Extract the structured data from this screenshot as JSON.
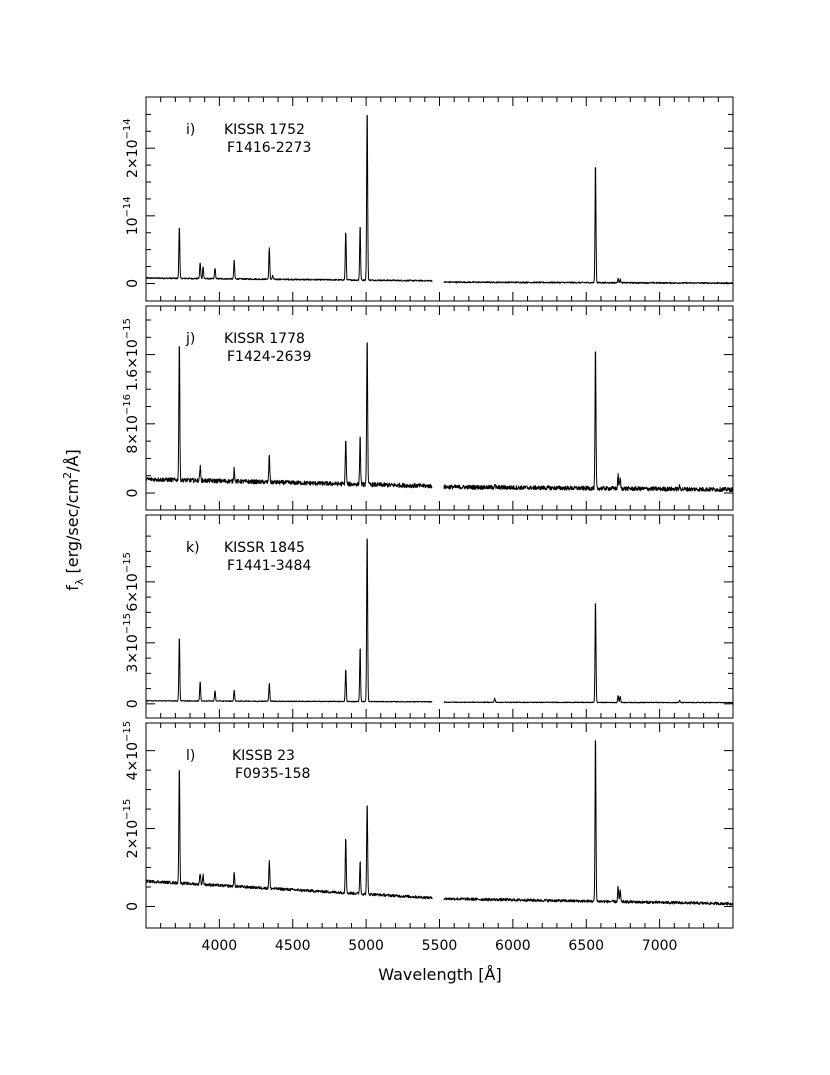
{
  "chart_data": [
    {
      "type": "line",
      "panel": "i)",
      "name": "KISSR 1752",
      "id": "F1416-2273",
      "exp": "-14",
      "xlim": [
        3500,
        7500
      ],
      "ylim": [
        -0.2,
        2.55
      ],
      "yticks": [
        {
          "v": 0,
          "label": "0"
        },
        {
          "v": 1,
          "label": "10",
          "exp": "−14"
        },
        {
          "v": 2,
          "label": "2×10",
          "exp": "−14"
        }
      ],
      "continuum": [
        [
          3500,
          0.08
        ],
        [
          5450,
          0.04
        ]
      ],
      "continuum2": [
        [
          5530,
          0.02
        ],
        [
          7500,
          0.005
        ]
      ],
      "noise": 0.01,
      "lines": [
        [
          3727,
          0.78
        ],
        [
          3869,
          0.24
        ],
        [
          3889,
          0.18
        ],
        [
          3970,
          0.16
        ],
        [
          4101,
          0.28
        ],
        [
          4340,
          0.46
        ],
        [
          4363,
          0.05
        ],
        [
          4861,
          0.72
        ],
        [
          4959,
          0.82
        ],
        [
          5007,
          2.55
        ],
        [
          6563,
          1.78
        ],
        [
          6717,
          0.06
        ],
        [
          6731,
          0.05
        ]
      ]
    },
    {
      "type": "line",
      "panel": "j)",
      "name": "KISSR 1778",
      "id": "F1424-2639",
      "exp": "-15",
      "xlim": [
        3500,
        7500
      ],
      "ylim": [
        -0.15,
        2.0
      ],
      "yticks": [
        {
          "v": 0,
          "label": "0"
        },
        {
          "v": 0.8,
          "label": "8×10",
          "exp": "−16"
        },
        {
          "v": 1.6,
          "label": "1.6×10",
          "exp": "−15"
        }
      ],
      "continuum": [
        [
          3500,
          0.16
        ],
        [
          5450,
          0.08
        ]
      ],
      "continuum2": [
        [
          5530,
          0.07
        ],
        [
          7500,
          0.04
        ]
      ],
      "noise": 0.025,
      "lines": [
        [
          3727,
          1.62
        ],
        [
          3869,
          0.16
        ],
        [
          4101,
          0.16
        ],
        [
          4340,
          0.32
        ],
        [
          4861,
          0.52
        ],
        [
          4959,
          0.56
        ],
        [
          5007,
          1.72
        ],
        [
          5876,
          0.04
        ],
        [
          6563,
          1.64
        ],
        [
          6717,
          0.16
        ],
        [
          6731,
          0.12
        ],
        [
          7136,
          0.03
        ]
      ]
    },
    {
      "type": "line",
      "panel": "k)",
      "name": "KISSR 1845",
      "id": "F1441-3484",
      "exp": "-15",
      "xlim": [
        3500,
        7500
      ],
      "ylim": [
        -0.5,
        8.6
      ],
      "yticks": [
        {
          "v": 0,
          "label": "0"
        },
        {
          "v": 3,
          "label": "3×10",
          "exp": "−15"
        },
        {
          "v": 6,
          "label": "6×10",
          "exp": "−15"
        }
      ],
      "continuum": [
        [
          3500,
          0.15
        ],
        [
          5450,
          0.1
        ]
      ],
      "continuum2": [
        [
          5530,
          0.08
        ],
        [
          7500,
          0.06
        ]
      ],
      "noise": 0.02,
      "lines": [
        [
          3727,
          3.2
        ],
        [
          3869,
          0.95
        ],
        [
          3970,
          0.5
        ],
        [
          4101,
          0.55
        ],
        [
          4340,
          0.9
        ],
        [
          4861,
          1.6
        ],
        [
          4959,
          2.7
        ],
        [
          5007,
          8.4
        ],
        [
          5876,
          0.2
        ],
        [
          6563,
          5.1
        ],
        [
          6717,
          0.35
        ],
        [
          6731,
          0.3
        ],
        [
          7136,
          0.1
        ]
      ]
    },
    {
      "type": "line",
      "panel": "l)",
      "name": "KISSB 23",
      "id": "F0935-158",
      "exp": "-15",
      "xlim": [
        3500,
        7500
      ],
      "ylim": [
        -0.45,
        4.35
      ],
      "yticks": [
        {
          "v": 0,
          "label": "0"
        },
        {
          "v": 2,
          "label": "2×10",
          "exp": "−15"
        },
        {
          "v": 4,
          "label": "4×10",
          "exp": "−15"
        }
      ],
      "continuum": [
        [
          3500,
          0.65
        ],
        [
          5450,
          0.22
        ]
      ],
      "continuum2": [
        [
          5530,
          0.2
        ],
        [
          7500,
          0.07
        ]
      ],
      "noise": 0.035,
      "lines": [
        [
          3727,
          3.0
        ],
        [
          3869,
          0.3
        ],
        [
          3889,
          0.25
        ],
        [
          4101,
          0.35
        ],
        [
          4340,
          0.7
        ],
        [
          4861,
          1.45
        ],
        [
          4959,
          0.85
        ],
        [
          5007,
          2.35
        ],
        [
          6563,
          4.3
        ],
        [
          6717,
          0.4
        ],
        [
          6731,
          0.3
        ]
      ]
    }
  ],
  "xaxis": {
    "label": "Wavelength  [Å]",
    "ticks": [
      "4000",
      "4500",
      "5000",
      "5500",
      "6000",
      "6500",
      "7000"
    ],
    "tick_values": [
      4000,
      4500,
      5000,
      5500,
      6000,
      6500,
      7000
    ]
  },
  "yaxis": {
    "label": "fλ [erg/sec/cm²/Å]",
    "label_main": "f",
    "label_sub": "λ",
    "label_rest": " [erg/sec/cm",
    "label_sup": "2",
    "label_end": "/Å]"
  }
}
